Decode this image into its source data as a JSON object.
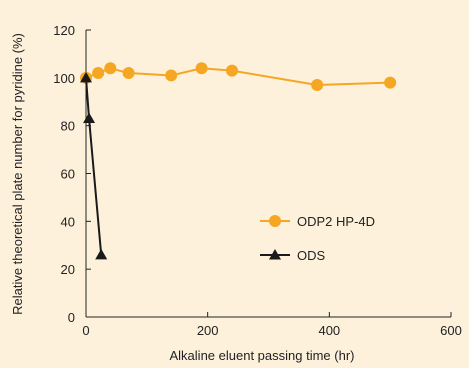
{
  "colors": {
    "background": "#fdf1dc",
    "axis": "#222222"
  },
  "chart_data": {
    "type": "line",
    "xlabel": "Alkaline eluent passing time (hr)",
    "ylabel": "Relative theoretical plate number for pyridine (%)",
    "xlim": [
      0,
      600
    ],
    "ylim": [
      0,
      120
    ],
    "xticks": [
      0,
      200,
      400,
      600
    ],
    "yticks": [
      0,
      20,
      40,
      60,
      80,
      100,
      120
    ],
    "grid": false,
    "legend_position": "right-middle",
    "series": [
      {
        "name": "ODP2 HP-4D",
        "color": "#f5a623",
        "line_color": "#f5a623",
        "marker": "circle",
        "x": [
          0,
          20,
          40,
          70,
          140,
          190,
          240,
          380,
          500
        ],
        "y": [
          100,
          102,
          104,
          102,
          101,
          104,
          103,
          97,
          98
        ]
      },
      {
        "name": "ODS",
        "color": "#1a1a1a",
        "line_color": "#1a1a1a",
        "marker": "triangle",
        "x": [
          0,
          5,
          25
        ],
        "y": [
          100,
          83,
          26
        ]
      }
    ]
  }
}
